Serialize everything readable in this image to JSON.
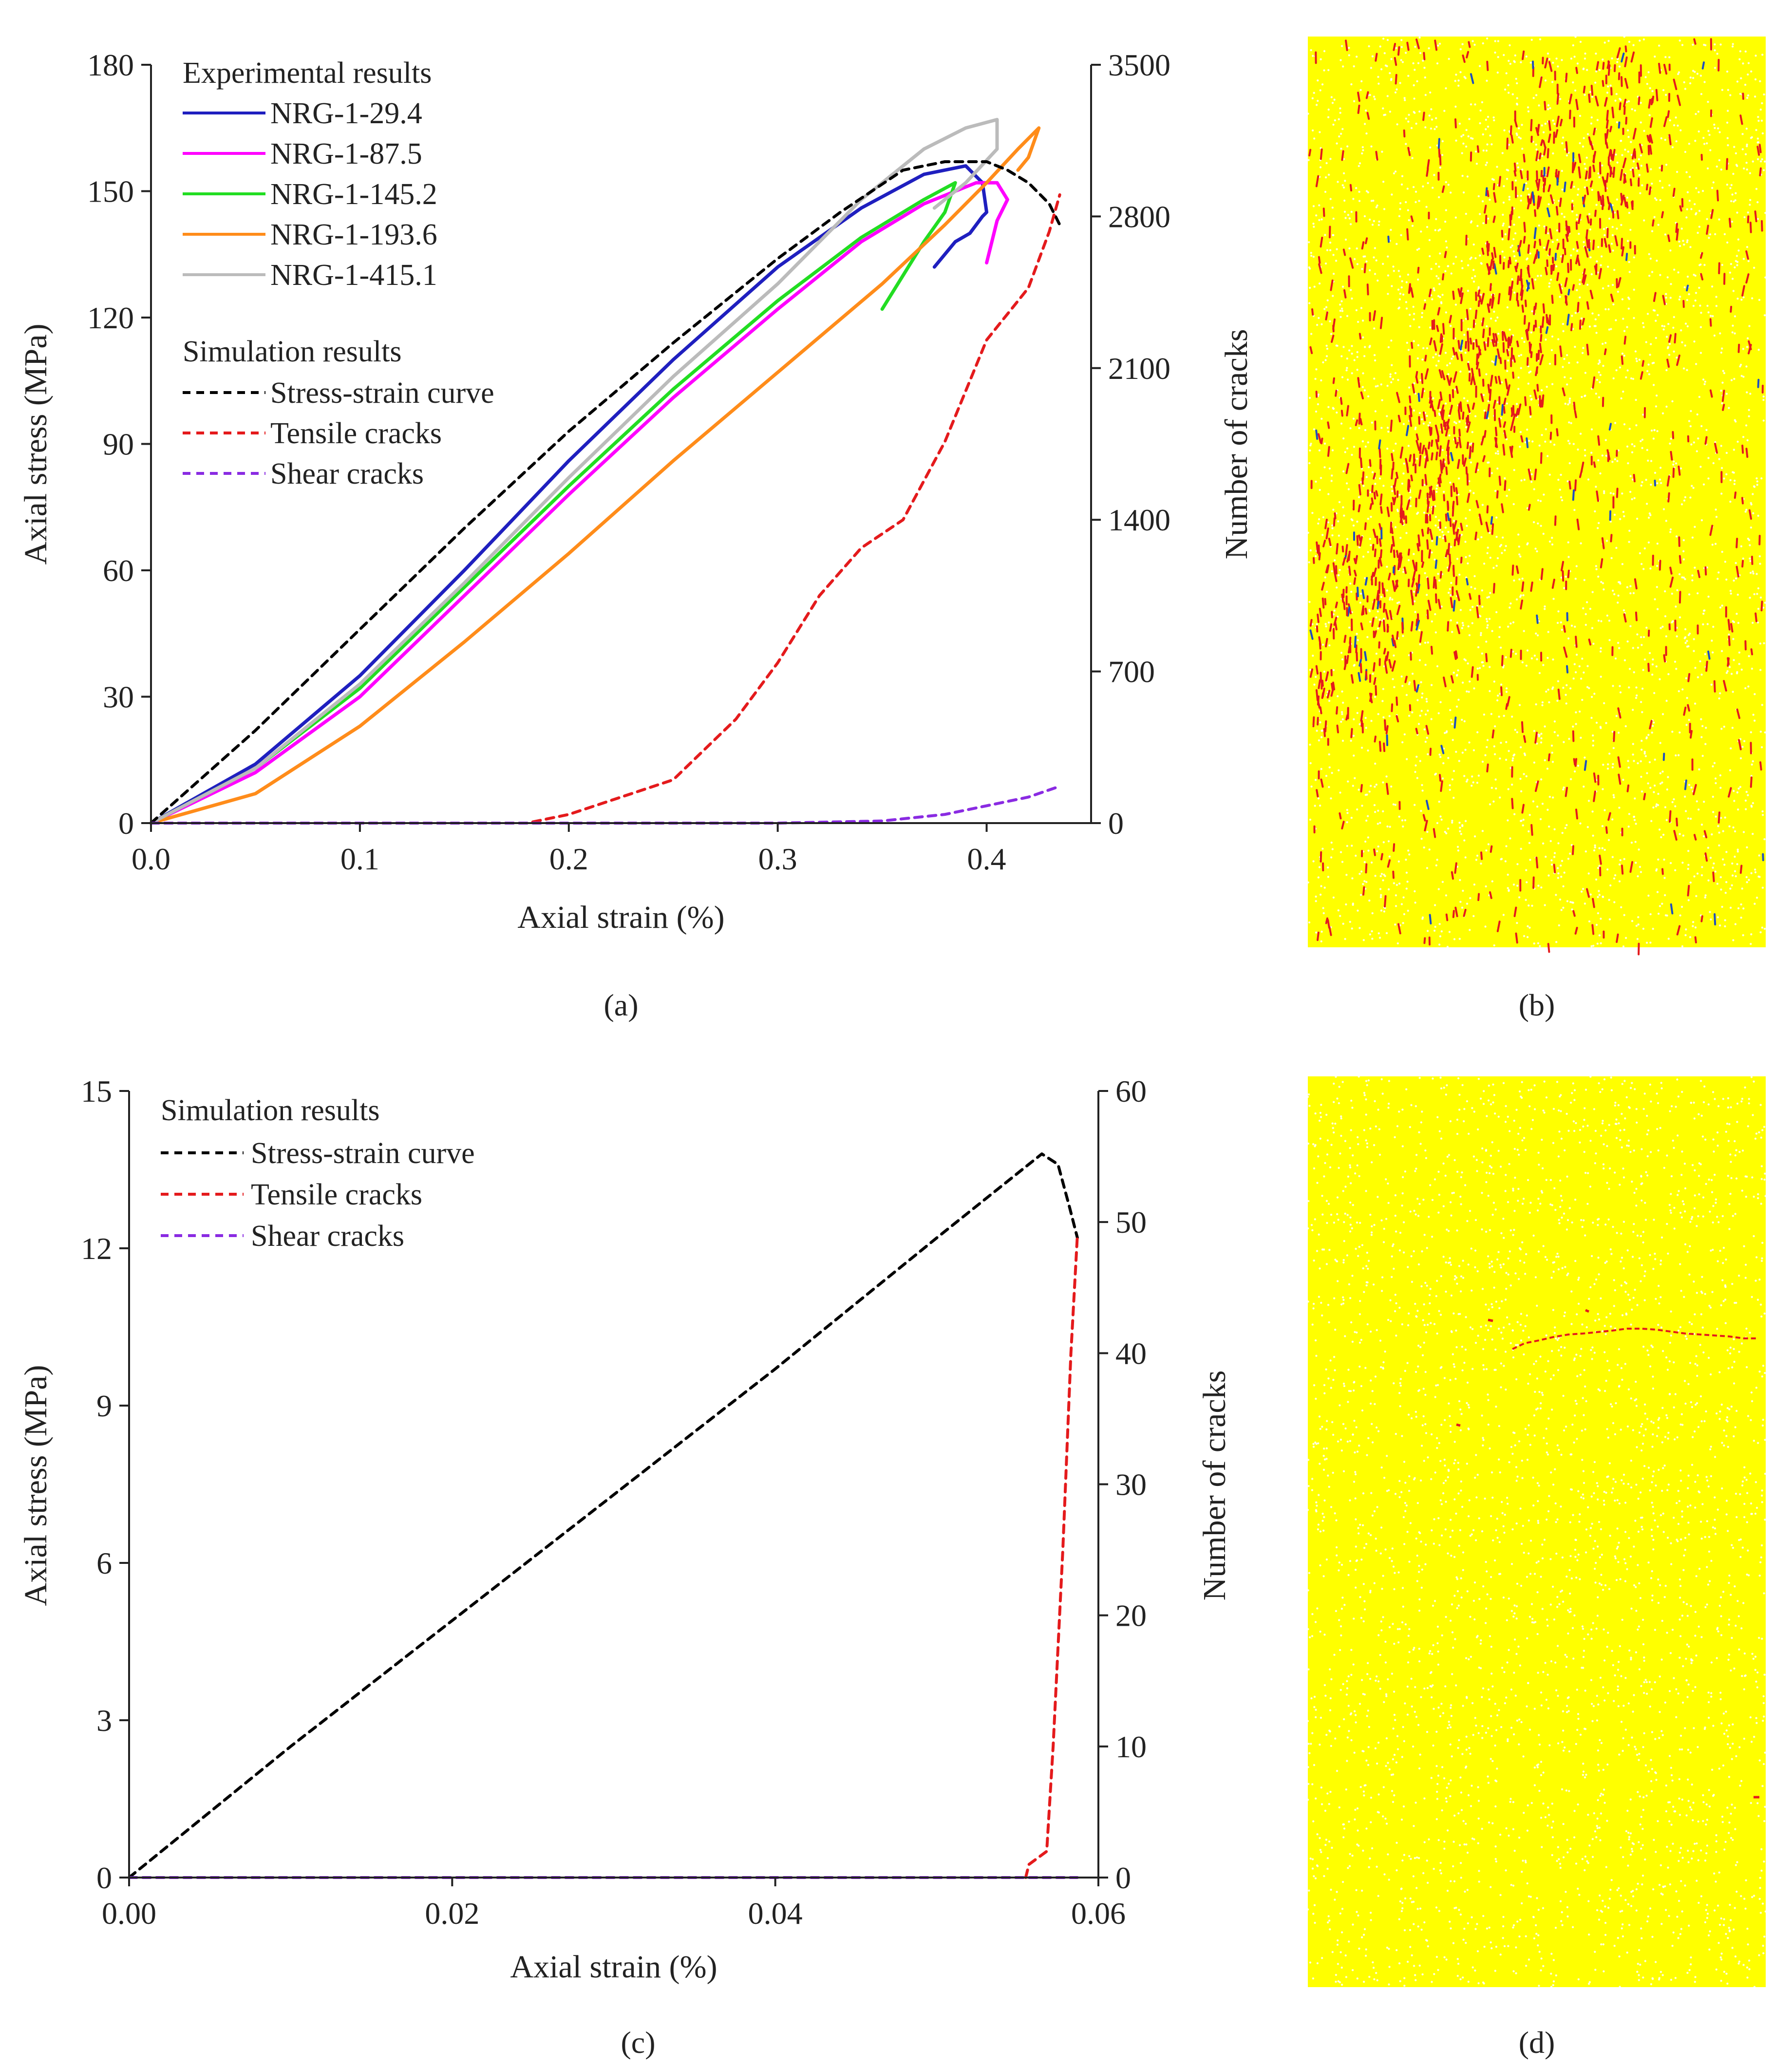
{
  "chart_data": [
    {
      "panel": "a",
      "type": "line",
      "caption": "(a)",
      "xlabel": "Axial strain (%)",
      "ylabel": "Axial stress (MPa)",
      "y2label": "Number of cracks",
      "xlim": [
        0,
        0.45
      ],
      "ylim": [
        0,
        180
      ],
      "y2lim": [
        0,
        3500
      ],
      "xticks": [
        "0.0",
        "0.1",
        "0.2",
        "0.3",
        "0.4"
      ],
      "xtick_values": [
        0,
        0.1,
        0.2,
        0.3,
        0.4
      ],
      "yticks": [
        "0",
        "30",
        "60",
        "90",
        "120",
        "150",
        "180"
      ],
      "ytick_values": [
        0,
        30,
        60,
        90,
        120,
        150,
        180
      ],
      "y2ticks": [
        "0",
        "700",
        "1400",
        "2100",
        "2800",
        "3500"
      ],
      "y2tick_values": [
        0,
        700,
        1400,
        2100,
        2800,
        3500
      ],
      "legend_group1_title": "Experimental results",
      "legend_group2_title": "Simulation results",
      "series": [
        {
          "name": "NRG-1-29.4",
          "group": "experimental",
          "axis": "left",
          "color": "#1f1fbf",
          "dash": "solid",
          "x": [
            0,
            0.05,
            0.1,
            0.15,
            0.2,
            0.25,
            0.3,
            0.34,
            0.37,
            0.39,
            0.398,
            0.4,
            0.398,
            0.392,
            0.385,
            0.375
          ],
          "y": [
            0,
            14,
            35,
            60,
            86,
            110,
            132,
            146,
            154,
            156,
            152,
            145,
            144,
            140,
            138,
            132
          ]
        },
        {
          "name": "NRG-1-87.5",
          "group": "experimental",
          "axis": "left",
          "color": "#ff00ff",
          "dash": "solid",
          "x": [
            0,
            0.05,
            0.1,
            0.15,
            0.2,
            0.25,
            0.3,
            0.34,
            0.37,
            0.395,
            0.405,
            0.41,
            0.405,
            0.4
          ],
          "y": [
            0,
            12,
            30,
            54,
            78,
            101,
            122,
            138,
            147,
            152,
            152,
            148,
            143,
            133
          ]
        },
        {
          "name": "NRG-1-145.2",
          "group": "experimental",
          "axis": "left",
          "color": "#22dd22",
          "dash": "solid",
          "x": [
            0,
            0.05,
            0.1,
            0.15,
            0.2,
            0.25,
            0.3,
            0.34,
            0.37,
            0.385,
            0.38,
            0.37,
            0.36,
            0.35
          ],
          "y": [
            0,
            13,
            32,
            56,
            80,
            103,
            124,
            139,
            148,
            152,
            145,
            138,
            130,
            122
          ]
        },
        {
          "name": "NRG-1-193.6",
          "group": "experimental",
          "axis": "left",
          "color": "#ff8c1a",
          "dash": "solid",
          "x": [
            0,
            0.05,
            0.1,
            0.15,
            0.2,
            0.25,
            0.3,
            0.35,
            0.38,
            0.4,
            0.415,
            0.425,
            0.42,
            0.415
          ],
          "y": [
            0,
            7,
            23,
            43,
            64,
            86,
            107,
            128,
            142,
            152,
            160,
            165,
            158,
            155
          ]
        },
        {
          "name": "NRG-1-415.1",
          "group": "experimental",
          "axis": "left",
          "color": "#bbbbbb",
          "dash": "solid",
          "x": [
            0,
            0.05,
            0.1,
            0.15,
            0.2,
            0.25,
            0.3,
            0.34,
            0.37,
            0.39,
            0.405,
            0.405,
            0.39,
            0.375
          ],
          "y": [
            0,
            13,
            33,
            57,
            82,
            106,
            128,
            148,
            160,
            165,
            167,
            160,
            152,
            146
          ]
        },
        {
          "name": "Stress-strain curve",
          "group": "simulation",
          "axis": "left",
          "color": "#000000",
          "dash": "dashed",
          "x": [
            0,
            0.05,
            0.1,
            0.15,
            0.2,
            0.25,
            0.3,
            0.33,
            0.36,
            0.38,
            0.4,
            0.41,
            0.42,
            0.43,
            0.435
          ],
          "y": [
            0,
            22,
            46,
            70,
            93,
            114,
            134,
            145,
            155,
            157,
            157,
            155,
            152,
            147,
            142
          ]
        },
        {
          "name": "Tensile cracks",
          "group": "simulation",
          "axis": "right",
          "color": "#e41a1c",
          "dash": "dashed",
          "x": [
            0,
            0.18,
            0.2,
            0.25,
            0.28,
            0.3,
            0.32,
            0.34,
            0.36,
            0.38,
            0.4,
            0.42,
            0.43,
            0.435
          ],
          "y": [
            0,
            0,
            40,
            200,
            480,
            740,
            1050,
            1270,
            1400,
            1760,
            2230,
            2470,
            2730,
            2900
          ]
        },
        {
          "name": "Shear cracks",
          "group": "simulation",
          "axis": "right",
          "color": "#8a2be2",
          "dash": "dashed",
          "x": [
            0,
            0.3,
            0.35,
            0.38,
            0.4,
            0.42,
            0.435
          ],
          "y": [
            0,
            0,
            10,
            40,
            80,
            120,
            170
          ]
        }
      ]
    },
    {
      "panel": "c",
      "type": "line",
      "caption": "(c)",
      "xlabel": "Axial strain (%)",
      "ylabel": "Axial stress (MPa)",
      "y2label": "Number of cracks",
      "xlim": [
        0,
        0.06
      ],
      "ylim": [
        0,
        15
      ],
      "y2lim": [
        0,
        60
      ],
      "xticks": [
        "0.00",
        "0.02",
        "0.04",
        "0.06"
      ],
      "xtick_values": [
        0,
        0.02,
        0.04,
        0.06
      ],
      "yticks": [
        "0",
        "3",
        "6",
        "9",
        "12",
        "15"
      ],
      "ytick_values": [
        0,
        3,
        6,
        9,
        12,
        15
      ],
      "y2ticks": [
        "0",
        "10",
        "20",
        "30",
        "40",
        "50",
        "60"
      ],
      "y2tick_values": [
        0,
        10,
        20,
        30,
        40,
        50,
        60
      ],
      "legend_group2_title": "Simulation results",
      "series": [
        {
          "name": "Stress-strain curve",
          "group": "simulation",
          "axis": "left",
          "color": "#000000",
          "dash": "dashed",
          "x": [
            0,
            0.002,
            0.01,
            0.02,
            0.03,
            0.04,
            0.05,
            0.0565,
            0.0575,
            0.0582,
            0.0587
          ],
          "y": [
            0,
            0.5,
            2.5,
            4.9,
            7.3,
            9.7,
            12.2,
            13.8,
            13.6,
            12.8,
            12.2
          ]
        },
        {
          "name": "Tensile cracks",
          "group": "simulation",
          "axis": "right",
          "color": "#e41a1c",
          "dash": "dashed",
          "x": [
            0.0555,
            0.0557,
            0.0568,
            0.0572,
            0.0578,
            0.0583,
            0.0587
          ],
          "y": [
            0,
            1,
            2,
            10,
            25,
            40,
            49
          ]
        },
        {
          "name": "Shear cracks",
          "group": "simulation",
          "axis": "right",
          "color": "#8a2be2",
          "dash": "dashed",
          "x": [
            0,
            0.0587
          ],
          "y": [
            0,
            0
          ]
        }
      ]
    }
  ],
  "images": [
    {
      "panel": "b",
      "caption": "(b)",
      "background": "#ffff00",
      "tensile_color": "#e41a1c",
      "shear_color": "#1f4fbf",
      "crack_density": "dense"
    },
    {
      "panel": "d",
      "caption": "(d)",
      "background": "#ffff00",
      "tensile_color": "#e41a1c",
      "crack_density": "sparse"
    }
  ]
}
